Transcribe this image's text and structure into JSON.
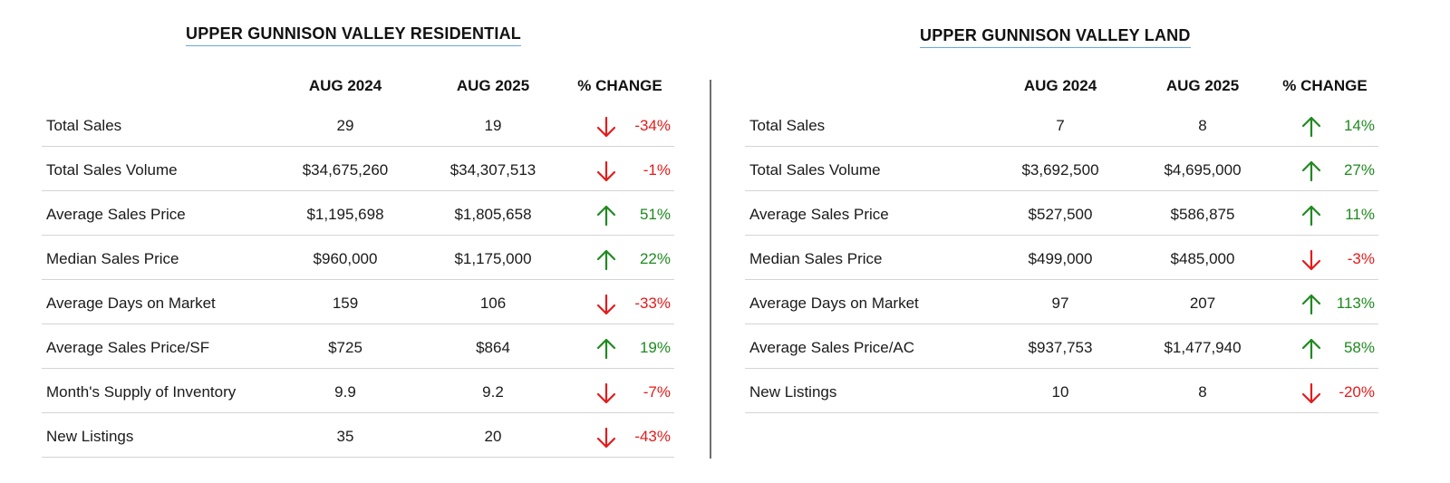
{
  "colors": {
    "up": "#1f8a1f",
    "down": "#e31b1b",
    "title_underline": "#6aa9d8",
    "row_rule": "#d4d4d4",
    "divider": "#6e6e6e"
  },
  "residential": {
    "title": "UPPER GUNNISON VALLEY RESIDENTIAL",
    "headers": {
      "col1": "AUG 2024",
      "col2": "AUG 2025",
      "col3": "% CHANGE"
    },
    "rows": [
      {
        "label": "Total Sales",
        "v1": "29",
        "v2": "19",
        "pct": "-34%",
        "direction": "down",
        "arrow_icon": "arrow-down-icon"
      },
      {
        "label": "Total Sales Volume",
        "v1": "$34,675,260",
        "v2": "$34,307,513",
        "pct": "-1%",
        "direction": "down",
        "arrow_icon": "arrow-down-icon"
      },
      {
        "label": "Average Sales Price",
        "v1": "$1,195,698",
        "v2": "$1,805,658",
        "pct": "51%",
        "direction": "up",
        "arrow_icon": "arrow-up-icon"
      },
      {
        "label": "Median Sales Price",
        "v1": "$960,000",
        "v2": "$1,175,000",
        "pct": "22%",
        "direction": "up",
        "arrow_icon": "arrow-up-icon"
      },
      {
        "label": "Average Days on Market",
        "v1": "159",
        "v2": "106",
        "pct": "-33%",
        "direction": "down",
        "arrow_icon": "arrow-down-icon"
      },
      {
        "label": "Average Sales Price/SF",
        "v1": "$725",
        "v2": "$864",
        "pct": "19%",
        "direction": "up",
        "arrow_icon": "arrow-up-icon"
      },
      {
        "label": "Month's Supply of Inventory",
        "v1": "9.9",
        "v2": "9.2",
        "pct": "-7%",
        "direction": "down",
        "arrow_icon": "arrow-down-icon"
      },
      {
        "label": "New Listings",
        "v1": "35",
        "v2": "20",
        "pct": "-43%",
        "direction": "down",
        "arrow_icon": "arrow-down-icon"
      }
    ]
  },
  "land": {
    "title": "UPPER GUNNISON VALLEY LAND",
    "headers": {
      "col1": "AUG 2024",
      "col2": "AUG 2025",
      "col3": "% CHANGE"
    },
    "rows": [
      {
        "label": "Total Sales",
        "v1": "7",
        "v2": "8",
        "pct": "14%",
        "direction": "up",
        "arrow_icon": "arrow-up-icon"
      },
      {
        "label": "Total Sales Volume",
        "v1": "$3,692,500",
        "v2": "$4,695,000",
        "pct": "27%",
        "direction": "up",
        "arrow_icon": "arrow-up-icon"
      },
      {
        "label": "Average Sales Price",
        "v1": "$527,500",
        "v2": "$586,875",
        "pct": "11%",
        "direction": "up",
        "arrow_icon": "arrow-up-icon"
      },
      {
        "label": "Median Sales Price",
        "v1": "$499,000",
        "v2": "$485,000",
        "pct": "-3%",
        "direction": "down",
        "arrow_icon": "arrow-down-icon"
      },
      {
        "label": "Average Days on Market",
        "v1": "97",
        "v2": "207",
        "pct": "113%",
        "direction": "up",
        "arrow_icon": "arrow-up-icon"
      },
      {
        "label": "Average Sales Price/AC",
        "v1": "$937,753",
        "v2": "$1,477,940",
        "pct": "58%",
        "direction": "up",
        "arrow_icon": "arrow-up-icon"
      },
      {
        "label": "New Listings",
        "v1": "10",
        "v2": "8",
        "pct": "-20%",
        "direction": "down",
        "arrow_icon": "arrow-down-icon"
      }
    ]
  }
}
